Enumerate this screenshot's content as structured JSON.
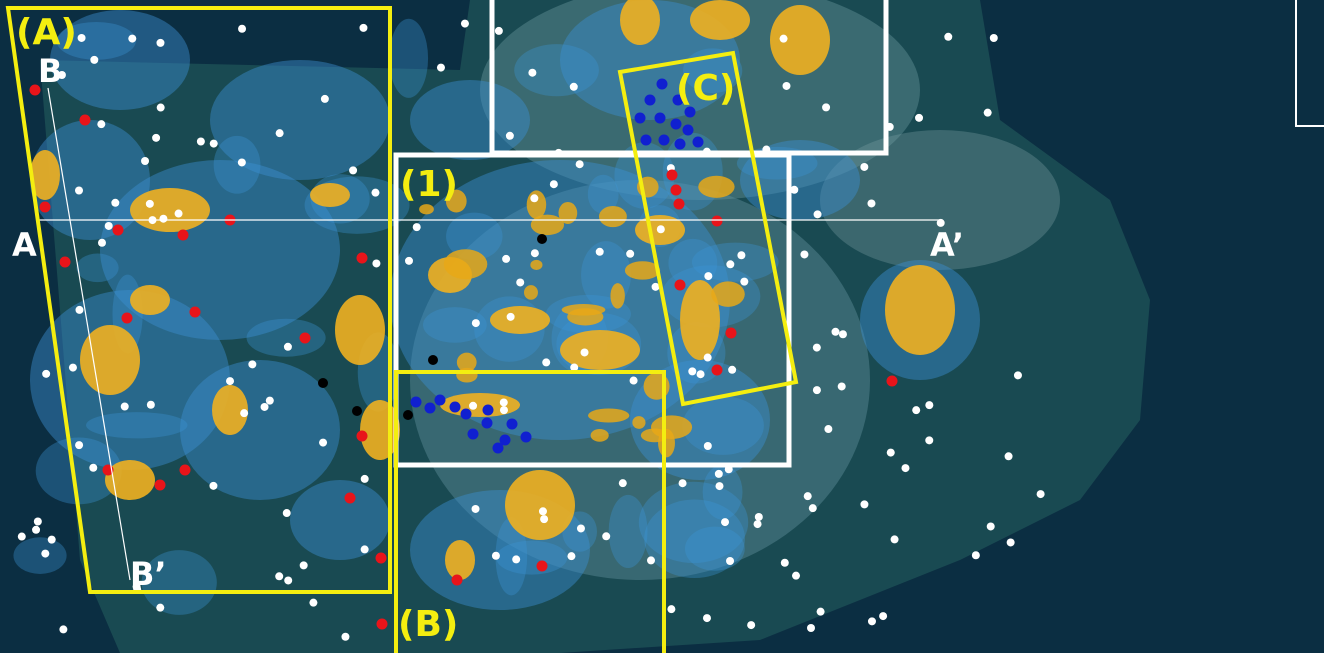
{
  "labels": {
    "region_a": "(A)",
    "b": "B",
    "b_prime": "B’",
    "a": "A",
    "a_prime": "A’",
    "box_1": "(1)",
    "region_c": "(C)",
    "region_b": "(B)"
  }
}
